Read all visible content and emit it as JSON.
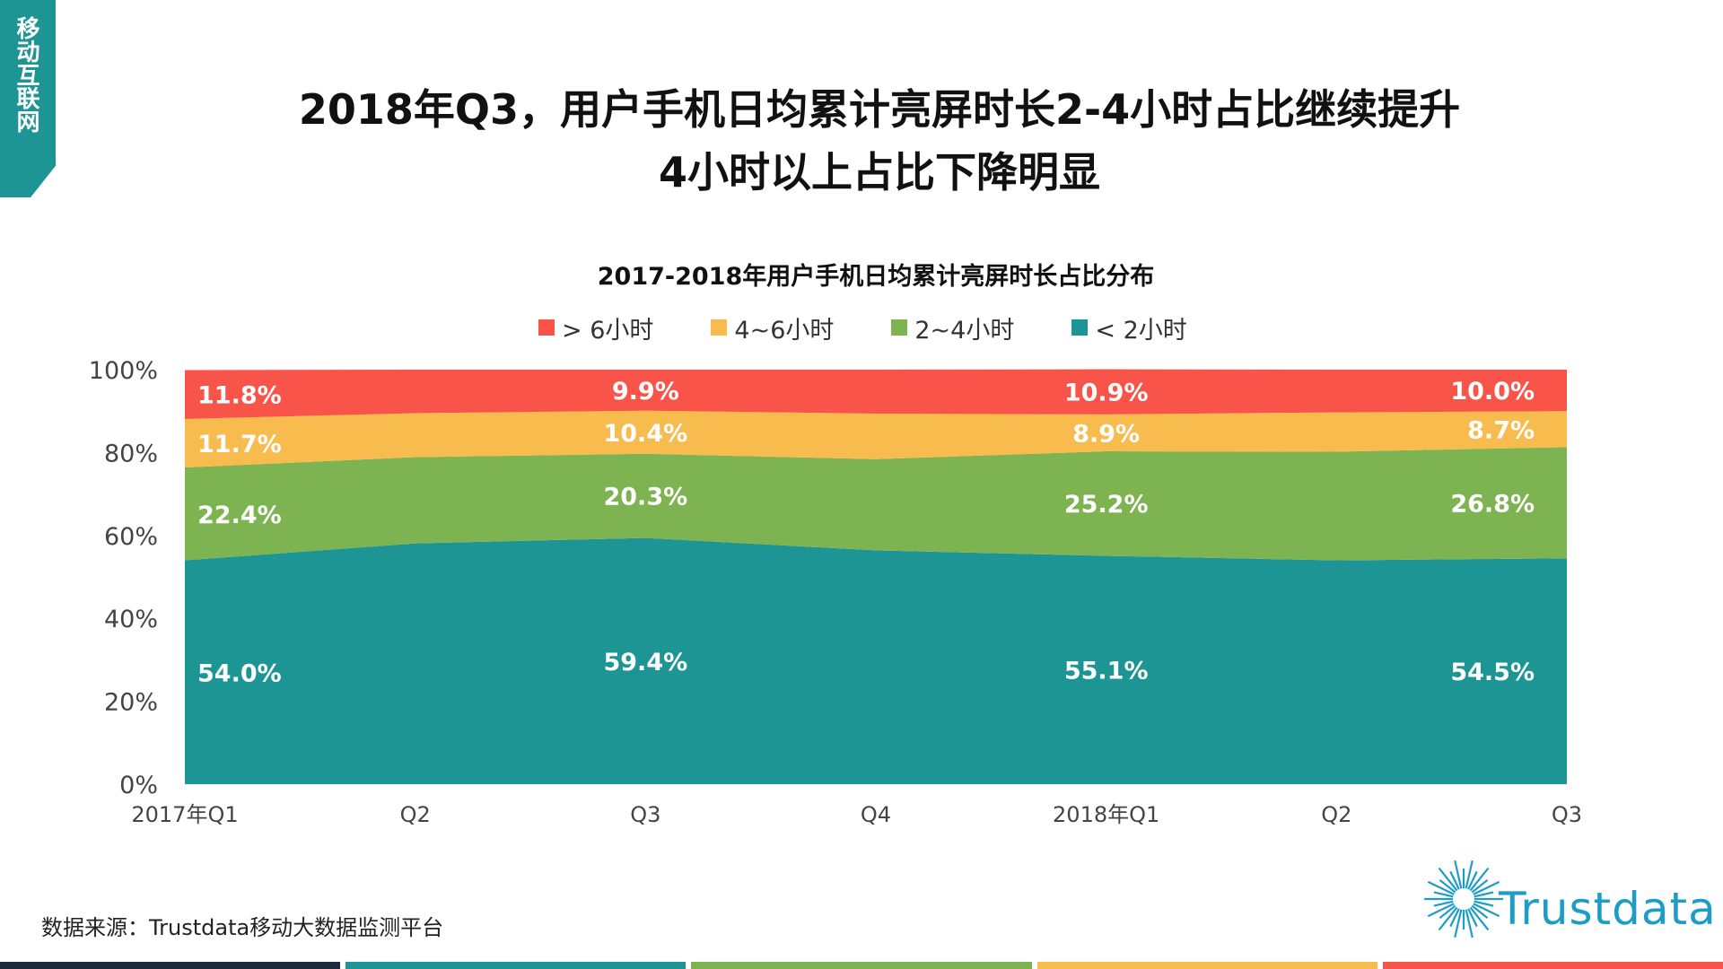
{
  "side_tab": {
    "label": "移动互联网"
  },
  "title": {
    "line1": "2018年Q3，用户手机日均累计亮屏时长2-4小时占比继续提升",
    "line2": "4小时以上占比下降明显"
  },
  "colors": {
    "tab": "#1e9595",
    "gt6": "#f9544a",
    "h4_6": "#f8bb4d",
    "h2_4": "#7db350",
    "lt2": "#1e9595",
    "bottom_bars": [
      "#1d2a3a",
      "#1e9595",
      "#7db350",
      "#f8bb4d",
      "#f9544a"
    ]
  },
  "chart_data": {
    "type": "area",
    "stacked": true,
    "title": "2017-2018年用户手机日均累计亮屏时长占比分布",
    "categories": [
      "2017年Q1",
      "Q2",
      "Q3",
      "Q4",
      "2018年Q1",
      "Q2",
      "Q3"
    ],
    "ylim": [
      0,
      100
    ],
    "yticks": [
      "0%",
      "20%",
      "40%",
      "60%",
      "80%",
      "100%"
    ],
    "legend_position": "top-center",
    "series": [
      {
        "name": "< 2小时",
        "key": "lt2",
        "values": [
          54.0,
          58.1,
          59.4,
          56.4,
          55.1,
          54.0,
          54.5
        ],
        "labels": [
          "54.0%",
          null,
          "59.4%",
          null,
          "55.1%",
          null,
          "54.5%"
        ]
      },
      {
        "name": "2~4小时",
        "key": "h2_4",
        "values": [
          22.4,
          20.8,
          20.3,
          22.0,
          25.2,
          26.2,
          26.8
        ],
        "labels": [
          "22.4%",
          null,
          "20.3%",
          null,
          "25.2%",
          null,
          "26.8%"
        ]
      },
      {
        "name": "4~6小时",
        "key": "h4_6",
        "values": [
          11.7,
          10.6,
          10.4,
          11.0,
          8.9,
          9.5,
          8.7
        ],
        "labels": [
          "11.7%",
          null,
          "10.4%",
          null,
          "8.9%",
          null,
          "8.7%"
        ]
      },
      {
        "name": "> 6小时",
        "key": "gt6",
        "values": [
          11.8,
          10.5,
          9.9,
          10.6,
          10.9,
          10.3,
          10.0
        ],
        "labels": [
          "11.8%",
          null,
          "9.9%",
          null,
          "10.9%",
          null,
          "10.0%"
        ]
      }
    ],
    "legend_order": [
      "gt6",
      "h4_6",
      "h2_4",
      "lt2"
    ]
  },
  "source": "数据来源：Trustdata移动大数据监测平台",
  "logo": {
    "text": "Trustdata",
    "icon": "sunburst-icon"
  }
}
